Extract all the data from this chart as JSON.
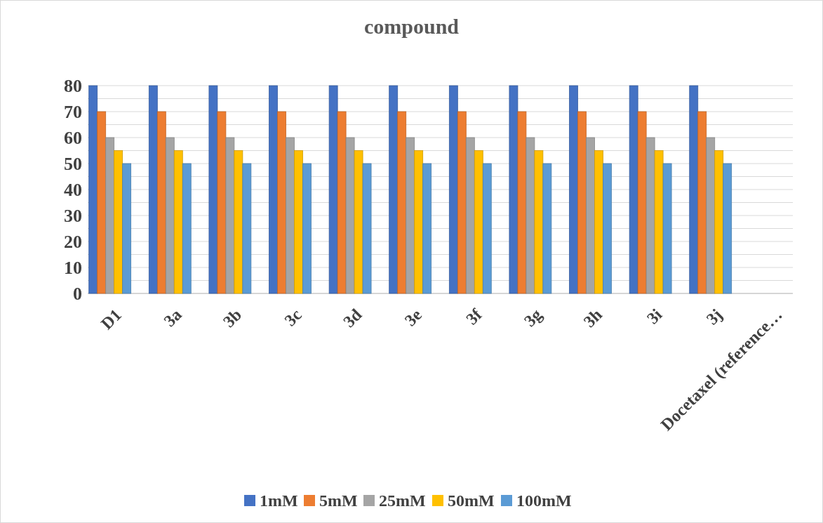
{
  "chart_data": {
    "type": "bar",
    "title": "compound",
    "categories": [
      "D1",
      "3a",
      "3b",
      "3c",
      "3d",
      "3e",
      "3f",
      "3g",
      "3h",
      "3i",
      "3j",
      "Docetaxel (reference…"
    ],
    "series": [
      {
        "name": "1mM",
        "color": "#4472c4",
        "values": [
          80,
          80,
          80,
          80,
          80,
          80,
          80,
          80,
          80,
          80,
          80,
          null
        ]
      },
      {
        "name": "5mM",
        "color": "#ed7d31",
        "values": [
          70,
          70,
          70,
          70,
          70,
          70,
          70,
          70,
          70,
          70,
          70,
          null
        ]
      },
      {
        "name": "25mM",
        "color": "#a5a5a5",
        "values": [
          60,
          60,
          60,
          60,
          60,
          60,
          60,
          60,
          60,
          60,
          60,
          null
        ]
      },
      {
        "name": "50mM",
        "color": "#ffc000",
        "values": [
          55,
          55,
          55,
          55,
          55,
          55,
          55,
          55,
          55,
          55,
          55,
          null
        ]
      },
      {
        "name": "100mM",
        "color": "#5b9bd5",
        "values": [
          50,
          50,
          50,
          50,
          50,
          50,
          50,
          50,
          50,
          50,
          50,
          null
        ]
      }
    ],
    "ylim": [
      0,
      80
    ],
    "yticks": [
      0,
      {
        "value": 5,
        "label": null
      },
      10,
      {
        "value": 15,
        "label": null
      },
      20,
      {
        "value": 25,
        "label": null
      },
      30,
      {
        "value": 35,
        "label": null
      },
      40,
      {
        "value": 45,
        "label": null
      },
      50,
      {
        "value": 55,
        "label": null
      },
      60,
      {
        "value": 65,
        "label": null
      },
      70,
      {
        "value": 75,
        "label": null
      },
      80
    ],
    "grid": "y",
    "legend": "bottom"
  }
}
